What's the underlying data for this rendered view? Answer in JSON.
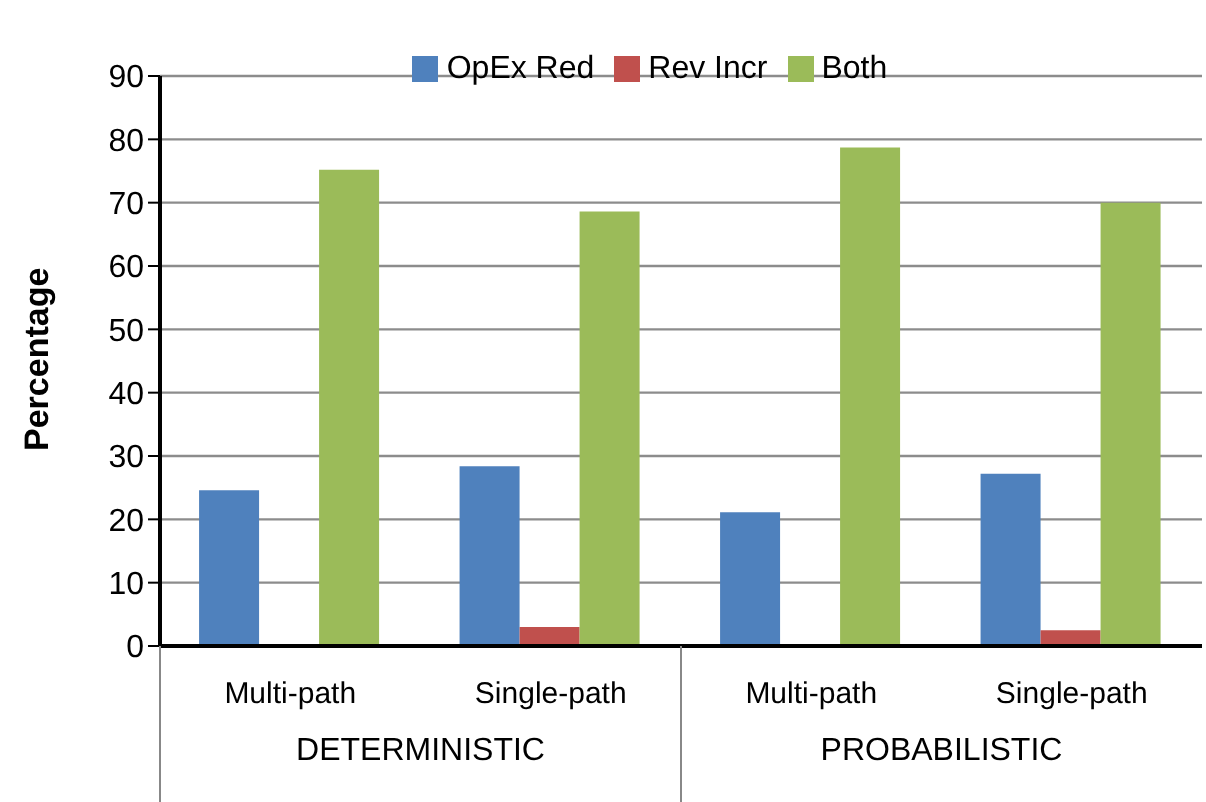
{
  "chart_data": {
    "type": "bar",
    "ylabel": "Percentage",
    "categories": [
      "Multi-path",
      "Single-path",
      "Multi-path",
      "Single-path"
    ],
    "series": [
      {
        "name": "OpEx Red",
        "color": "#4f81bd",
        "values": [
          24.6,
          28.4,
          21.1,
          27.2
        ]
      },
      {
        "name": "Rev Incr",
        "color": "#c0504d",
        "values": [
          0,
          3.0,
          0,
          2.5
        ]
      },
      {
        "name": "Both",
        "color": "#9bbb59",
        "values": [
          75.2,
          68.6,
          78.7,
          70.0
        ]
      }
    ],
    "annotations": [
      "DETERMINISTIC",
      "PROBABILISTIC"
    ],
    "ylim": [
      0,
      90
    ],
    "yticks": [
      0,
      10,
      20,
      30,
      40,
      50,
      60,
      70,
      80,
      90
    ],
    "grid": "y",
    "legend": "top"
  }
}
